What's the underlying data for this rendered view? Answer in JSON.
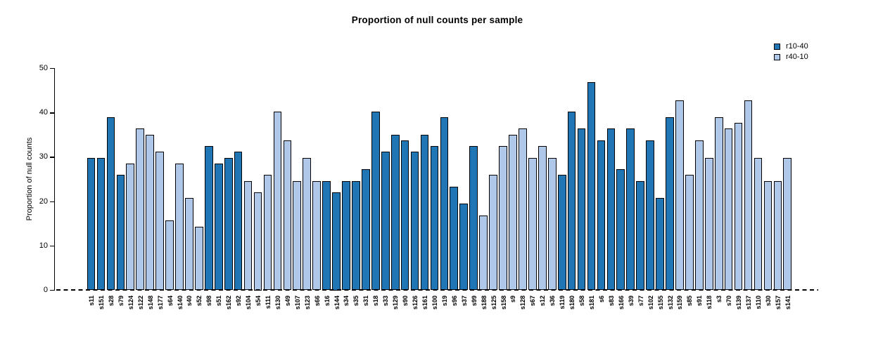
{
  "title": "Proportion of null counts per sample",
  "y_axis": {
    "label": "Proportion of null counts",
    "ticks": [
      0,
      10,
      20,
      30,
      40,
      50
    ]
  },
  "legend": [
    {
      "label": "r10-40",
      "color": "#2076B4"
    },
    {
      "label": "r40-10",
      "color": "#AFC7E8"
    }
  ],
  "chart_data": {
    "type": "bar",
    "title": "Proportion of null counts per sample",
    "xlabel": "",
    "ylabel": "Proportion of null counts",
    "ylim": [
      0,
      50
    ],
    "grid": false,
    "legend_position": "top-right",
    "baseline_style": "dashed zero line",
    "colors": {
      "r10-40": "#2076B4",
      "r40-10": "#AFC7E8"
    },
    "bars": [
      {
        "label": "s11",
        "value": 29.9,
        "group": "r10-40"
      },
      {
        "label": "s151",
        "value": 29.9,
        "group": "r10-40"
      },
      {
        "label": "s28",
        "value": 39.0,
        "group": "r10-40"
      },
      {
        "label": "s79",
        "value": 26.0,
        "group": "r10-40"
      },
      {
        "label": "s124",
        "value": 28.6,
        "group": "r40-10"
      },
      {
        "label": "s122",
        "value": 36.5,
        "group": "r40-10"
      },
      {
        "label": "s148",
        "value": 35.1,
        "group": "r40-10"
      },
      {
        "label": "s177",
        "value": 31.3,
        "group": "r40-10"
      },
      {
        "label": "s64",
        "value": 15.7,
        "group": "r40-10"
      },
      {
        "label": "s140",
        "value": 28.6,
        "group": "r40-10"
      },
      {
        "label": "s40",
        "value": 20.9,
        "group": "r40-10"
      },
      {
        "label": "s52",
        "value": 14.4,
        "group": "r40-10"
      },
      {
        "label": "s98",
        "value": 32.5,
        "group": "r10-40"
      },
      {
        "label": "s51",
        "value": 28.6,
        "group": "r10-40"
      },
      {
        "label": "s162",
        "value": 29.9,
        "group": "r10-40"
      },
      {
        "label": "s92",
        "value": 31.3,
        "group": "r10-40"
      },
      {
        "label": "s104",
        "value": 24.6,
        "group": "r40-10"
      },
      {
        "label": "s54",
        "value": 22.1,
        "group": "r40-10"
      },
      {
        "label": "s111",
        "value": 26.0,
        "group": "r40-10"
      },
      {
        "label": "s130",
        "value": 40.3,
        "group": "r40-10"
      },
      {
        "label": "s49",
        "value": 33.8,
        "group": "r40-10"
      },
      {
        "label": "s107",
        "value": 24.6,
        "group": "r40-10"
      },
      {
        "label": "s123",
        "value": 29.8,
        "group": "r40-10"
      },
      {
        "label": "s66",
        "value": 24.6,
        "group": "r40-10"
      },
      {
        "label": "s16",
        "value": 24.6,
        "group": "r10-40"
      },
      {
        "label": "s144",
        "value": 22.1,
        "group": "r10-40"
      },
      {
        "label": "s34",
        "value": 24.6,
        "group": "r10-40"
      },
      {
        "label": "s35",
        "value": 24.6,
        "group": "r10-40"
      },
      {
        "label": "s31",
        "value": 27.4,
        "group": "r10-40"
      },
      {
        "label": "s18",
        "value": 40.3,
        "group": "r10-40"
      },
      {
        "label": "s33",
        "value": 31.3,
        "group": "r10-40"
      },
      {
        "label": "s129",
        "value": 35.1,
        "group": "r10-40"
      },
      {
        "label": "s90",
        "value": 33.8,
        "group": "r10-40"
      },
      {
        "label": "s126",
        "value": 31.3,
        "group": "r10-40"
      },
      {
        "label": "s161",
        "value": 35.1,
        "group": "r10-40"
      },
      {
        "label": "s100",
        "value": 32.5,
        "group": "r10-40"
      },
      {
        "label": "s19",
        "value": 39.0,
        "group": "r10-40"
      },
      {
        "label": "s96",
        "value": 23.4,
        "group": "r10-40"
      },
      {
        "label": "s37",
        "value": 19.5,
        "group": "r10-40"
      },
      {
        "label": "s99",
        "value": 32.5,
        "group": "r10-40"
      },
      {
        "label": "s188",
        "value": 16.9,
        "group": "r40-10"
      },
      {
        "label": "s125",
        "value": 26.0,
        "group": "r40-10"
      },
      {
        "label": "s158",
        "value": 32.5,
        "group": "r40-10"
      },
      {
        "label": "s9",
        "value": 35.1,
        "group": "r40-10"
      },
      {
        "label": "s128",
        "value": 36.5,
        "group": "r40-10"
      },
      {
        "label": "s67",
        "value": 29.8,
        "group": "r40-10"
      },
      {
        "label": "s12",
        "value": 32.5,
        "group": "r40-10"
      },
      {
        "label": "s36",
        "value": 29.8,
        "group": "r40-10"
      },
      {
        "label": "s119",
        "value": 26.0,
        "group": "r10-40"
      },
      {
        "label": "s180",
        "value": 40.3,
        "group": "r10-40"
      },
      {
        "label": "s58",
        "value": 36.5,
        "group": "r10-40"
      },
      {
        "label": "s181",
        "value": 46.9,
        "group": "r10-40"
      },
      {
        "label": "s6",
        "value": 33.8,
        "group": "r10-40"
      },
      {
        "label": "s83",
        "value": 36.5,
        "group": "r10-40"
      },
      {
        "label": "s166",
        "value": 27.4,
        "group": "r10-40"
      },
      {
        "label": "s39",
        "value": 36.5,
        "group": "r10-40"
      },
      {
        "label": "s77",
        "value": 24.6,
        "group": "r10-40"
      },
      {
        "label": "s102",
        "value": 33.8,
        "group": "r10-40"
      },
      {
        "label": "s155",
        "value": 20.8,
        "group": "r10-40"
      },
      {
        "label": "s132",
        "value": 39.0,
        "group": "r10-40"
      },
      {
        "label": "s159",
        "value": 42.9,
        "group": "r40-10"
      },
      {
        "label": "s85",
        "value": 26.0,
        "group": "r40-10"
      },
      {
        "label": "s91",
        "value": 33.8,
        "group": "r40-10"
      },
      {
        "label": "s118",
        "value": 29.8,
        "group": "r40-10"
      },
      {
        "label": "s3",
        "value": 39.0,
        "group": "r40-10"
      },
      {
        "label": "s70",
        "value": 36.5,
        "group": "r40-10"
      },
      {
        "label": "s139",
        "value": 37.8,
        "group": "r40-10"
      },
      {
        "label": "s137",
        "value": 42.9,
        "group": "r40-10"
      },
      {
        "label": "s110",
        "value": 29.8,
        "group": "r40-10"
      },
      {
        "label": "s30",
        "value": 24.6,
        "group": "r40-10"
      },
      {
        "label": "s157",
        "value": 24.6,
        "group": "r40-10"
      },
      {
        "label": "s141",
        "value": 29.8,
        "group": "r40-10"
      }
    ]
  }
}
